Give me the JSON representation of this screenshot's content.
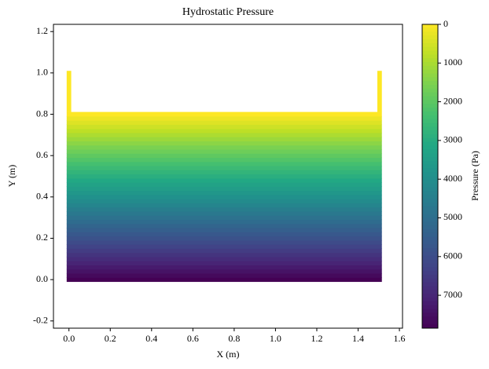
{
  "chart_data": {
    "type": "heatmap",
    "title": "Hydrostatic Pressure",
    "x_label": "X (m)",
    "y_label": "Y (m)",
    "colorbar_label": "Pressure (Pa)",
    "colormap": "viridis",
    "fluid_x": [
      -0.011,
      1.515
    ],
    "y": [
      0,
      0.02,
      0.04,
      0.06,
      0.08,
      0.1,
      0.12,
      0.14,
      0.16,
      0.18,
      0.2,
      0.22,
      0.24,
      0.26,
      0.28,
      0.3,
      0.32,
      0.34,
      0.36,
      0.38,
      0.4,
      0.42,
      0.44,
      0.46,
      0.48,
      0.5,
      0.52,
      0.54,
      0.56,
      0.58,
      0.6,
      0.62,
      0.64,
      0.66,
      0.68,
      0.7,
      0.72,
      0.74,
      0.76,
      0.78,
      0.8
    ],
    "values": [
      7848,
      7652,
      7456,
      7259,
      7063,
      6867,
      6671,
      6475,
      6278,
      6082,
      5886,
      5690,
      5494,
      5297,
      5101,
      4905,
      4709,
      4513,
      4316,
      4120,
      3924,
      3728,
      3532,
      3335,
      3139,
      2943,
      2747,
      2551,
      2354,
      2158,
      1962,
      1766,
      1570,
      1373,
      1177,
      981,
      785,
      589,
      392,
      196,
      0
    ],
    "walls": [
      {
        "x": [
          -0.011,
          0.011
        ],
        "y": [
          0.81,
          1.01
        ],
        "value": 0
      },
      {
        "x": [
          1.493,
          1.515
        ],
        "y": [
          0.81,
          1.01
        ],
        "value": 0
      }
    ],
    "xlim": [
      -0.075,
      1.615
    ],
    "ylim": [
      -0.235,
      1.235
    ],
    "xticks": [
      {
        "value": 0,
        "label": "0.0"
      },
      0.2,
      0.4,
      0.6,
      0.8,
      {
        "value": 1,
        "label": "1.0"
      },
      1.2,
      1.4,
      1.6
    ],
    "yticks": [
      -0.2,
      {
        "value": 0,
        "label": "0.0"
      },
      0.2,
      0.4,
      0.6,
      0.8,
      {
        "value": 1,
        "label": "1.0"
      },
      1.2
    ],
    "clim": [
      0,
      7850
    ],
    "cticks": [
      0,
      1000,
      2000,
      3000,
      4000,
      5000,
      6000,
      7000
    ],
    "colorbar_reversed": true
  }
}
